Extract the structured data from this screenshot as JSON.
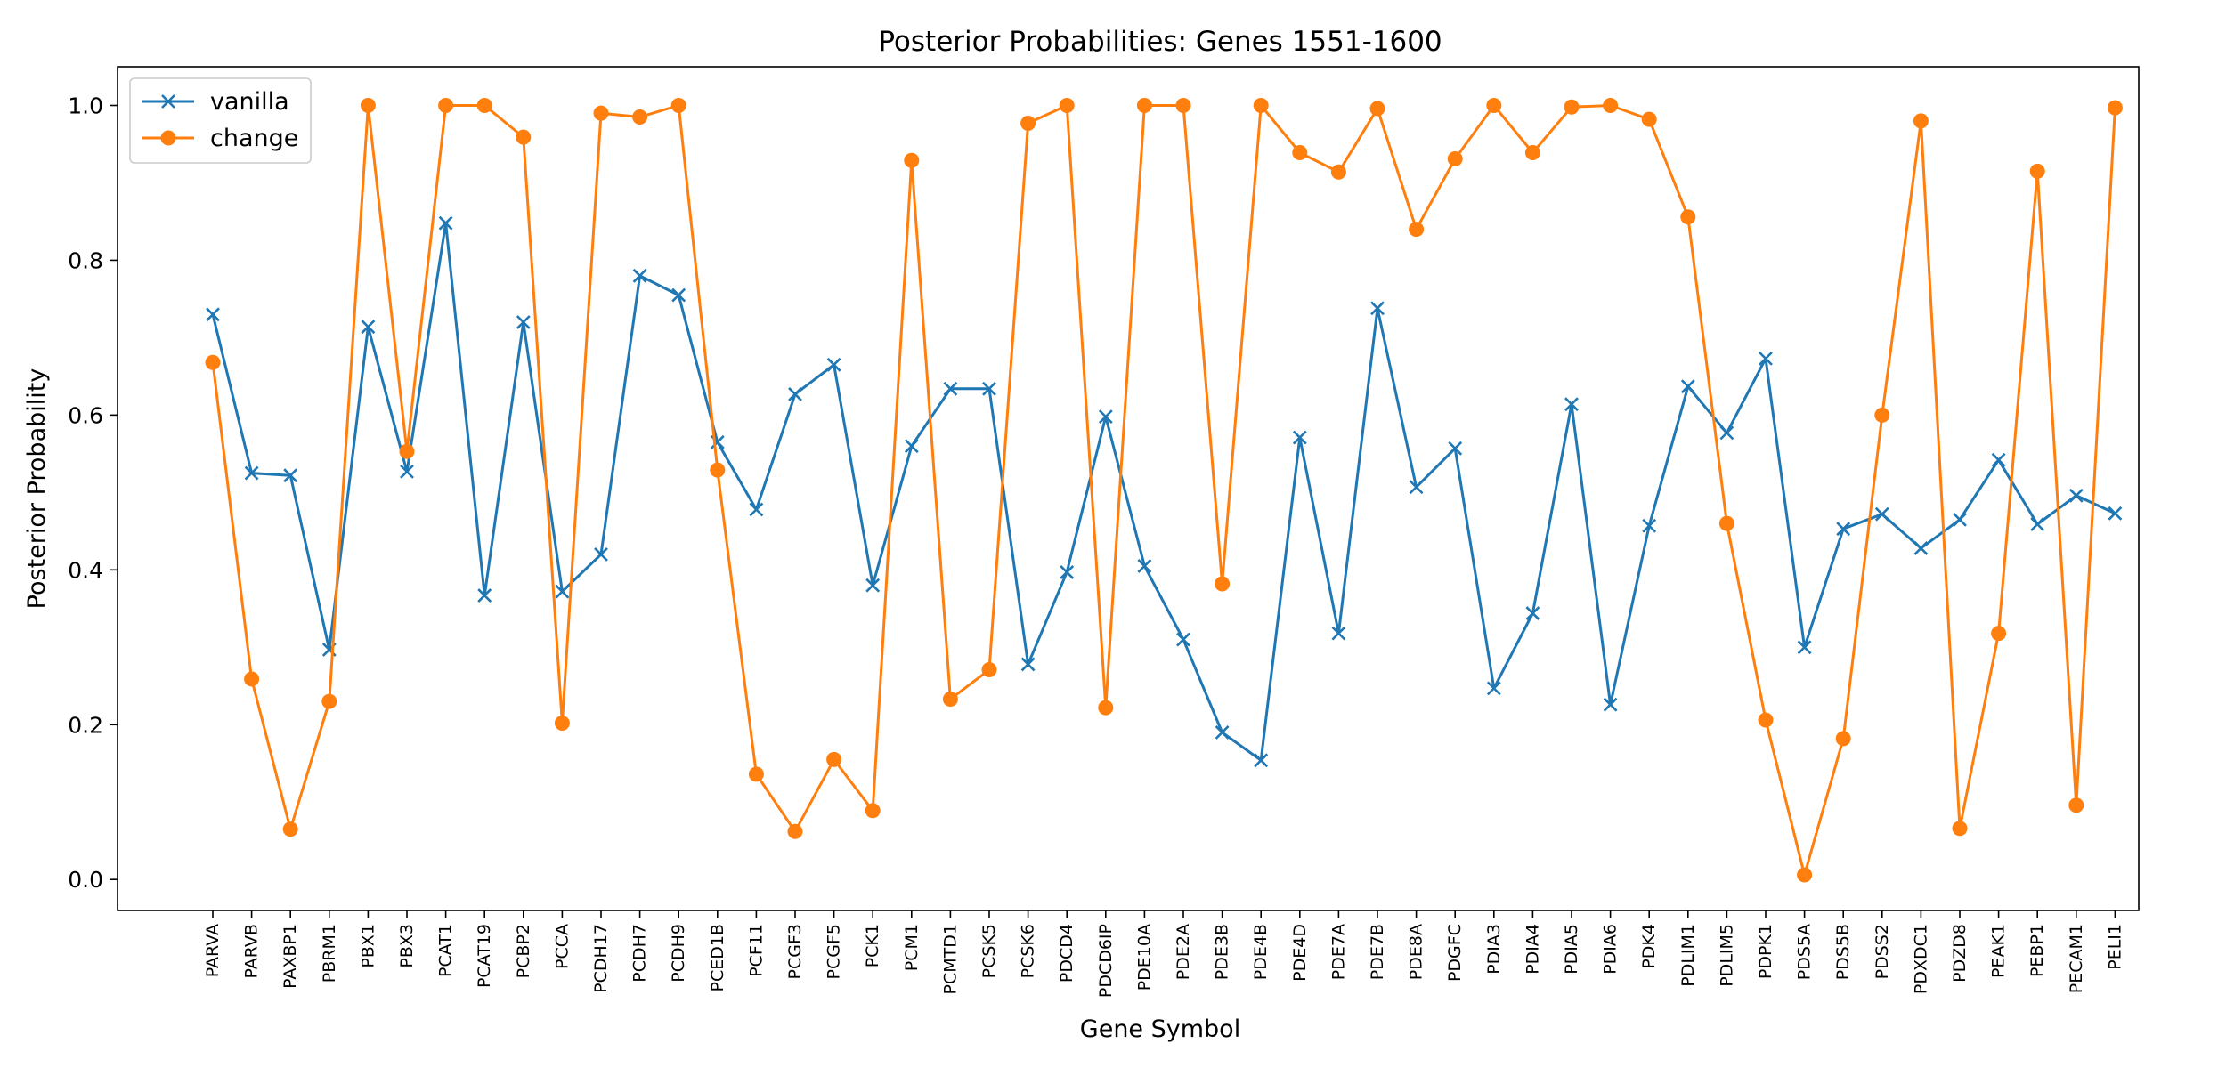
{
  "chart_data": {
    "type": "line",
    "title": "Posterior Probabilities: Genes 1551-1600",
    "xlabel": "Gene Symbol",
    "ylabel": "Posterior Probability",
    "ylim": [
      -0.04,
      1.05
    ],
    "yticks": [
      "0.0",
      "0.2",
      "0.4",
      "0.6",
      "0.8",
      "1.0"
    ],
    "legend_position": "top-left",
    "grid": false,
    "categories": [
      "PARVA",
      "PARVB",
      "PAXBP1",
      "PBRM1",
      "PBX1",
      "PBX3",
      "PCAT1",
      "PCAT19",
      "PCBP2",
      "PCCA",
      "PCDH17",
      "PCDH7",
      "PCDH9",
      "PCED1B",
      "PCF11",
      "PCGF3",
      "PCGF5",
      "PCK1",
      "PCM1",
      "PCMTD1",
      "PCSK5",
      "PCSK6",
      "PDCD4",
      "PDCD6IP",
      "PDE10A",
      "PDE2A",
      "PDE3B",
      "PDE4B",
      "PDE4D",
      "PDE7A",
      "PDE7B",
      "PDE8A",
      "PDGFC",
      "PDIA3",
      "PDIA4",
      "PDIA5",
      "PDIA6",
      "PDK4",
      "PDLIM1",
      "PDLIM5",
      "PDPK1",
      "PDS5A",
      "PDS5B",
      "PDSS2",
      "PDXDC1",
      "PDZD8",
      "PEAK1",
      "PEBP1",
      "PECAM1",
      "PELI1"
    ],
    "series": [
      {
        "name": "vanilla",
        "color": "#1f77b4",
        "marker": "x",
        "values": [
          0.73,
          0.525,
          0.522,
          0.297,
          0.714,
          0.527,
          0.848,
          0.367,
          0.72,
          0.372,
          0.42,
          0.78,
          0.755,
          0.565,
          0.478,
          0.627,
          0.665,
          0.38,
          0.56,
          0.634,
          0.634,
          0.278,
          0.397,
          0.598,
          0.405,
          0.31,
          0.19,
          0.154,
          0.571,
          0.318,
          0.738,
          0.507,
          0.557,
          0.247,
          0.344,
          0.614,
          0.226,
          0.457,
          0.637,
          0.577,
          0.673,
          0.3,
          0.453,
          0.472,
          0.428,
          0.465,
          0.542,
          0.459,
          0.496,
          0.473
        ]
      },
      {
        "name": "change",
        "color": "#ff7f0e",
        "marker": "o",
        "values": [
          0.668,
          0.259,
          0.065,
          0.23,
          1.0,
          0.553,
          1.0,
          1.0,
          0.959,
          0.202,
          0.99,
          0.985,
          1.0,
          0.529,
          0.136,
          0.062,
          0.155,
          0.089,
          0.929,
          0.233,
          0.271,
          0.977,
          1.0,
          0.222,
          1.0,
          1.0,
          0.382,
          1.0,
          0.939,
          0.914,
          0.996,
          0.84,
          0.931,
          1.0,
          0.939,
          0.998,
          1.0,
          0.982,
          0.856,
          0.46,
          0.206,
          0.006,
          0.182,
          0.6,
          0.98,
          0.066,
          0.318,
          0.915,
          0.096,
          0.997
        ]
      }
    ]
  }
}
